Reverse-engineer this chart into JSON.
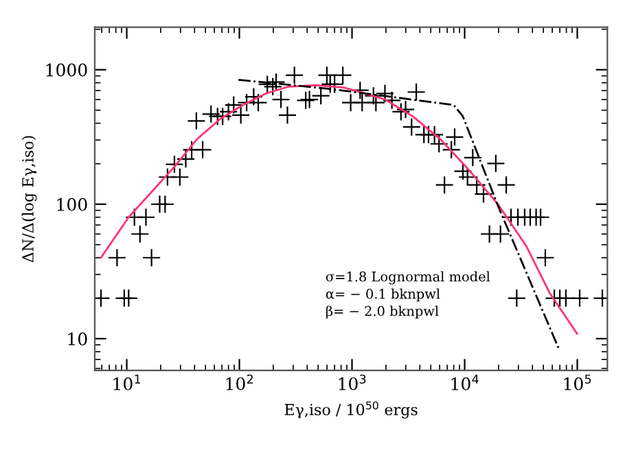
{
  "chart_data": {
    "type": "scatter",
    "xlabel": "Eγ,iso / 10$^{50}$ ergs",
    "ylabel": "ΔN/Δ(log Eγ,iso)",
    "log": "xy",
    "xlim": [
      5.2,
      185000
    ],
    "ylim": [
      5.8,
      2070
    ],
    "xticks": [
      {
        "value": 10,
        "label": "10$^{1}$"
      },
      {
        "value": 100,
        "label": "10$^{2}$"
      },
      {
        "value": 1000,
        "label": "10$^{3}$"
      },
      {
        "value": 10000,
        "label": "10$^{4}$"
      },
      {
        "value": 100000,
        "label": "10$^{5}$"
      }
    ],
    "yticks": [
      10,
      100,
      1000
    ],
    "grid": false,
    "legend": false,
    "annotations": [
      "σ=1.8 Lognormal model",
      "α= − 0.1 bknpwl",
      "β= − 2.0 bknpwl"
    ],
    "series": [
      {
        "marker": "cross",
        "color": "#000000",
        "x": [
          5.9,
          8.2,
          9.5,
          10.4,
          11.7,
          13.1,
          14.8,
          16.6,
          19.6,
          21.9,
          23.0,
          26.5,
          29.6,
          33.4,
          37.7,
          47.2,
          41.5,
          56,
          64,
          71,
          80,
          89,
          103,
          116,
          134,
          147,
          177,
          198,
          212,
          234,
          267,
          308,
          388,
          419,
          529,
          598,
          700,
          828,
          973,
          640,
          1180,
          1230,
          1550,
          1630,
          1960,
          2260,
          3720,
          2720,
          2990,
          3380,
          4350,
          4780,
          5400,
          5920,
          7620,
          8150,
          11800,
          9640,
          10600,
          12800,
          14700,
          6620,
          18900,
          23400,
          25800,
          29700,
          34100,
          38200,
          43100,
          47200,
          16600,
          20800,
          52000,
          29000,
          62500,
          70000,
          79200,
          105000,
          167000
        ],
        "values": [
          20,
          40,
          20,
          20,
          80,
          60,
          80,
          40,
          100,
          100,
          159,
          198,
          159,
          217,
          254,
          254,
          416,
          468,
          450,
          450,
          487,
          547,
          460,
          569,
          630,
          569,
          779,
          749,
          809,
          601,
          460,
          910,
          592,
          601,
          640,
          910,
          779,
          910,
          569,
          779,
          703,
          569,
          640,
          569,
          666,
          592,
          682,
          487,
          506,
          375,
          329,
          329,
          329,
          281,
          254,
          316,
          222,
          176,
          159,
          139,
          119,
          139,
          201,
          139,
          80,
          80,
          80,
          80,
          80,
          80,
          60,
          60,
          40,
          20,
          20,
          20,
          20,
          20,
          20
        ]
      },
      {
        "type": "line",
        "marker": "none",
        "line_style": "solid",
        "color": "#ff3377",
        "x": [
          5.9,
          10.4,
          26.5,
          42,
          68,
          108,
          172,
          274,
          485,
          845,
          1120,
          1960,
          3460,
          6080,
          10700,
          20100,
          35400,
          56600,
          99500
        ],
        "values": [
          40,
          80,
          190,
          304,
          432,
          547,
          666,
          749,
          767,
          737,
          691,
          601,
          450,
          304,
          183,
          98,
          48.5,
          22,
          10.9
        ]
      },
      {
        "type": "line",
        "marker": "none",
        "line_style": "dashdot",
        "color": "#000000",
        "x": [
          98,
          638,
          8000,
          9640,
          20100,
          69000
        ],
        "values": [
          842,
          720,
          547,
          450,
          94,
          8.3
        ]
      }
    ]
  }
}
